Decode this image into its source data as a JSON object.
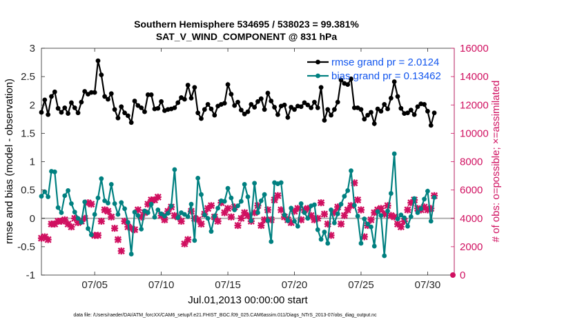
{
  "chart_data": {
    "type": "line",
    "title": "Southern Hemisphere 534695 / 538023 = 99.381%",
    "subtitle": "SAT_V_WIND_COMPONENT @ 831 hPa",
    "xlabel": "Jul.01,2013 00:00:00 start",
    "ylabel": "rmse and bias (model - observation)",
    "y2label": "# of obs: o=possible; ×=assimilated",
    "footnote": "data file: /Users/raeder/DAI/ATM_forcXX/CAM6_setup/f.e21.FHIST_BGC.f09_025.CAM6assim.011/Diags_NTrS_2013-07/obs_diag_output.nc",
    "xlim": [
      1,
      32
    ],
    "ylim": [
      -1,
      3
    ],
    "y2lim": [
      0,
      16000
    ],
    "xticks": [
      5,
      10,
      15,
      20,
      25,
      30
    ],
    "xtick_labels": [
      "07/05",
      "07/10",
      "07/15",
      "07/20",
      "07/25",
      "07/30"
    ],
    "yticks": [
      -1,
      -0.5,
      0,
      0.5,
      1,
      1.5,
      2,
      2.5,
      3
    ],
    "ytick_labels": [
      "-1",
      "-0.5",
      "0",
      "0.5",
      "1",
      "1.5",
      "2",
      "2.5",
      "3"
    ],
    "y2ticks": [
      0,
      2000,
      4000,
      6000,
      8000,
      10000,
      12000,
      14000,
      16000
    ],
    "y2tick_labels": [
      "0",
      "2000",
      "4000",
      "6000",
      "8000",
      "10000",
      "12000",
      "14000",
      "16000"
    ],
    "legend_position": "top-right",
    "x_start": 1.0,
    "x_step": 0.25,
    "series": [
      {
        "name": "rmse",
        "legend": "rmse grand pr = 2.0124",
        "color": "#000000",
        "axis": "left",
        "values": [
          1.87,
          2.09,
          1.83,
          2.15,
          2.23,
          1.94,
          1.87,
          1.95,
          1.85,
          2.04,
          1.95,
          1.86,
          2.05,
          2.24,
          2.19,
          2.22,
          2.22,
          2.78,
          2.53,
          2.15,
          2.1,
          2.2,
          1.92,
          1.77,
          1.97,
          1.86,
          1.81,
          1.69,
          2.07,
          1.99,
          1.95,
          1.88,
          2.18,
          2.18,
          1.93,
          1.94,
          2.06,
          1.9,
          1.92,
          1.93,
          1.95,
          2.04,
          2.13,
          2.1,
          2.35,
          2.12,
          2.31,
          1.86,
          1.76,
          1.92,
          2.01,
          1.93,
          1.82,
          1.98,
          2.01,
          2.03,
          2.36,
          2.19,
          1.99,
          2.05,
          1.91,
          1.84,
          1.88,
          2.01,
          1.96,
          2.06,
          2.11,
          1.92,
          2.21,
          2.07,
          1.96,
          1.83,
          1.98,
          2.0,
          1.78,
          1.96,
          1.92,
          1.98,
          1.97,
          2.04,
          2.0,
          1.95,
          2.05,
          1.95,
          2.31,
          1.73,
          1.92,
          1.82,
          1.92,
          2.05,
          2.44,
          2.38,
          2.36,
          2.46,
          1.95,
          1.95,
          1.92,
          1.75,
          1.82,
          1.87,
          1.67,
          1.93,
          1.89,
          2.01,
          1.93,
          2.12,
          2.41,
          2.15,
          1.94,
          1.85,
          1.86,
          1.91,
          1.83,
          1.97,
          2.02,
          2.01,
          1.89,
          1.64,
          1.86
        ]
      },
      {
        "name": "bias",
        "legend": "bias grand pr = 0.13462",
        "color": "#008080",
        "axis": "left",
        "values": [
          0.39,
          0.47,
          0.38,
          0.83,
          0.82,
          0.19,
          0.1,
          0.4,
          0.49,
          0.26,
          0.11,
          0.0,
          -0.07,
          0.29,
          -0.18,
          -0.29,
          0.07,
          0.36,
          0.7,
          0.31,
          0.27,
          0.6,
          0.26,
          0.07,
          0.28,
          0.17,
          -0.07,
          -0.63,
          0.11,
          0.05,
          -0.19,
          0.13,
          0.1,
          0.25,
          0.02,
          0.15,
          0.08,
          0.04,
          0.09,
          0.22,
          0.86,
          0.01,
          0.1,
          0.07,
          0.03,
          0.25,
          -0.39,
          0.71,
          0.42,
          0.06,
          0.0,
          -0.23,
          0.04,
          0.18,
          0.31,
          0.3,
          0.53,
          0.36,
          0.15,
          0.22,
          0.3,
          0.6,
          0.38,
          -0.04,
          0.62,
          0.1,
          0.31,
          0.42,
          -0.04,
          -0.41,
          0.63,
          0.61,
          0.63,
          0.06,
          -0.04,
          0.18,
          -0.05,
          -0.14,
          0.26,
          0.1,
          0.0,
          0.22,
          0.24,
          -0.2,
          -0.37,
          -0.24,
          -0.44,
          0.15,
          -0.08,
          0.08,
          0.25,
          0.39,
          0.49,
          0.84,
          0.23,
          0.04,
          -0.44,
          -0.01,
          -0.1,
          -0.15,
          -0.49,
          0.12,
          0.05,
          -0.66,
          0.13,
          0.44,
          1.14,
          -0.01,
          0.06,
          0.01,
          -0.14,
          0.03,
          0.35,
          0.1,
          0.17,
          0.34,
          0.48,
          -0.05,
          0.37
        ]
      },
      {
        "name": "assimilated",
        "legend": "",
        "color": "#d01060",
        "axis": "right",
        "values": [
          2600,
          2700,
          2500,
          3600,
          3600,
          3800,
          3800,
          3900,
          3600,
          3400,
          4000,
          3700,
          3800,
          4000,
          5100,
          5000,
          2800,
          2800,
          3800,
          4600,
          4500,
          4100,
          3300,
          2500,
          1700,
          3800,
          3400,
          3300,
          3200,
          4600,
          4100,
          4400,
          5000,
          5300,
          5300,
          5500,
          4200,
          3900,
          4500,
          4800,
          4200,
          4100,
          3800,
          2200,
          2500,
          4500,
          4000,
          3900,
          3600,
          4300,
          4700,
          4900,
          4100,
          3800,
          5100,
          4400,
          4700,
          4100,
          4800,
          3500,
          4000,
          4400,
          4200,
          3800,
          4400,
          4900,
          3500,
          3900,
          4600,
          3900,
          5300,
          5600,
          4600,
          4100,
          3900,
          3700,
          4500,
          4700,
          3900,
          4600,
          4700,
          4200,
          3900,
          4000,
          5100,
          4300,
          3600,
          2800,
          4400,
          4800,
          3600,
          4200,
          4600,
          4900,
          6500,
          5300,
          4600,
          2700,
          3500,
          3900,
          4400,
          4600,
          4700,
          4300,
          4900,
          4200,
          4100,
          3600,
          3400,
          3800,
          4600,
          5100,
          5300,
          4700,
          4600,
          4800,
          4600,
          4700,
          5600
        ]
      }
    ]
  }
}
